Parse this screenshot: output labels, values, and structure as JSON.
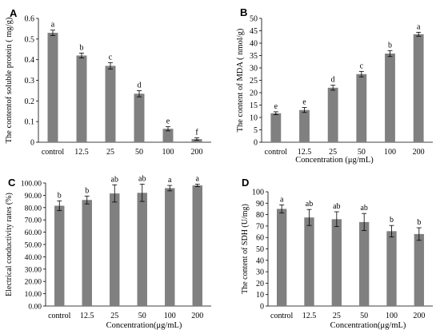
{
  "chart_data": [
    {
      "type": "bar",
      "panel_label": "A",
      "categories": [
        "control",
        "12.5",
        "25",
        "50",
        "100",
        "200"
      ],
      "values": [
        0.53,
        0.42,
        0.37,
        0.235,
        0.065,
        0.015
      ],
      "errors": [
        0.013,
        0.012,
        0.015,
        0.015,
        0.01,
        0.006
      ],
      "letters": [
        "a",
        "b",
        "c",
        "d",
        "e",
        "f"
      ],
      "ylabel": "The contentof soluble protein ( mg/g)",
      "xlabel": "",
      "ylim": [
        0,
        0.6
      ],
      "yticks": [
        "0",
        "0.1",
        "0.2",
        "0.3",
        "0.4",
        "0.5",
        "0.6"
      ],
      "grid": false,
      "bar_color": "#808080"
    },
    {
      "type": "bar",
      "panel_label": "B",
      "categories": [
        "control",
        "12.5",
        "25",
        "50",
        "100",
        "200"
      ],
      "values": [
        11.7,
        13.0,
        22.0,
        27.5,
        35.8,
        43.6
      ],
      "errors": [
        0.6,
        1.0,
        1.0,
        1.1,
        1.2,
        0.8
      ],
      "letters": [
        "e",
        "e",
        "d",
        "c",
        "b",
        "a"
      ],
      "ylabel": "The content of MDA ( nmol/g)",
      "xlabel": "Concentration (μg/mL)",
      "ylim": [
        0,
        50
      ],
      "yticks": [
        "0",
        "5",
        "10",
        "15",
        "20",
        "25",
        "30",
        "35",
        "40",
        "45",
        "50"
      ],
      "grid": false,
      "bar_color": "#808080"
    },
    {
      "type": "bar",
      "panel_label": "C",
      "categories": [
        "control",
        "12.5",
        "25",
        "50",
        "100",
        "200"
      ],
      "values": [
        81.5,
        86.2,
        91.5,
        92.0,
        95.8,
        98.0
      ],
      "errors": [
        4.0,
        3.2,
        7.0,
        7.0,
        2.2,
        1.0
      ],
      "letters": [
        "b",
        "b",
        "ab",
        "ab",
        "a",
        "a"
      ],
      "ylabel": "Electrical conductivity rates (%)",
      "xlabel": "Concentration(μg/mL)",
      "ylim": [
        0,
        100
      ],
      "yticks": [
        "0.00",
        "10.00",
        "20.00",
        "30.00",
        "40.00",
        "50.00",
        "60.00",
        "70.00",
        "80.00",
        "90.00",
        "100.00"
      ],
      "grid": false,
      "bar_color": "#808080"
    },
    {
      "type": "bar",
      "panel_label": "D",
      "categories": [
        "control",
        "12.5",
        "25",
        "50",
        "100",
        "200"
      ],
      "values": [
        85.0,
        77.5,
        76.0,
        73.5,
        65.5,
        63.0
      ],
      "errors": [
        3.5,
        7.0,
        6.5,
        7.5,
        5.0,
        5.5
      ],
      "letters": [
        "a",
        "ab",
        "ab",
        "ab",
        "b",
        "b"
      ],
      "ylabel": "The content of SDH (U/mg)",
      "xlabel": "Concentration(μg/mL)",
      "ylim": [
        0,
        100
      ],
      "yticks": [
        "0",
        "10",
        "20",
        "30",
        "40",
        "50",
        "60",
        "70",
        "80",
        "90",
        "100"
      ],
      "grid": false,
      "bar_color": "#808080"
    }
  ]
}
